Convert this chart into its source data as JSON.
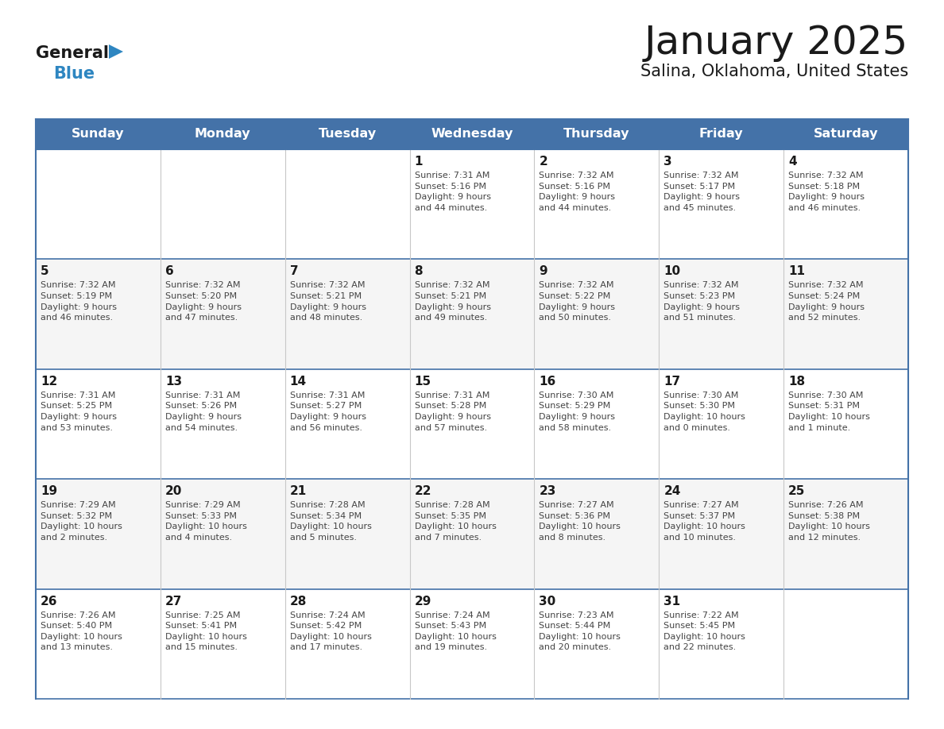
{
  "title": "January 2025",
  "subtitle": "Salina, Oklahoma, United States",
  "header_color": "#4472a8",
  "header_text_color": "#ffffff",
  "border_color": "#4472a8",
  "row_line_color": "#4472a8",
  "col_line_color": "#c8c8c8",
  "cell_bg_even": "#ffffff",
  "cell_bg_odd": "#f5f5f5",
  "title_color": "#1a1a1a",
  "subtitle_color": "#1a1a1a",
  "cell_text_color": "#444444",
  "day_num_color": "#1a1a1a",
  "logo_general_color": "#1a1a1a",
  "logo_blue_color": "#2e86c1",
  "logo_triangle_color": "#2e86c1",
  "day_names": [
    "Sunday",
    "Monday",
    "Tuesday",
    "Wednesday",
    "Thursday",
    "Friday",
    "Saturday"
  ],
  "calendar_data": [
    [
      {
        "day": null,
        "text": ""
      },
      {
        "day": null,
        "text": ""
      },
      {
        "day": null,
        "text": ""
      },
      {
        "day": 1,
        "text": "Sunrise: 7:31 AM\nSunset: 5:16 PM\nDaylight: 9 hours\nand 44 minutes."
      },
      {
        "day": 2,
        "text": "Sunrise: 7:32 AM\nSunset: 5:16 PM\nDaylight: 9 hours\nand 44 minutes."
      },
      {
        "day": 3,
        "text": "Sunrise: 7:32 AM\nSunset: 5:17 PM\nDaylight: 9 hours\nand 45 minutes."
      },
      {
        "day": 4,
        "text": "Sunrise: 7:32 AM\nSunset: 5:18 PM\nDaylight: 9 hours\nand 46 minutes."
      }
    ],
    [
      {
        "day": 5,
        "text": "Sunrise: 7:32 AM\nSunset: 5:19 PM\nDaylight: 9 hours\nand 46 minutes."
      },
      {
        "day": 6,
        "text": "Sunrise: 7:32 AM\nSunset: 5:20 PM\nDaylight: 9 hours\nand 47 minutes."
      },
      {
        "day": 7,
        "text": "Sunrise: 7:32 AM\nSunset: 5:21 PM\nDaylight: 9 hours\nand 48 minutes."
      },
      {
        "day": 8,
        "text": "Sunrise: 7:32 AM\nSunset: 5:21 PM\nDaylight: 9 hours\nand 49 minutes."
      },
      {
        "day": 9,
        "text": "Sunrise: 7:32 AM\nSunset: 5:22 PM\nDaylight: 9 hours\nand 50 minutes."
      },
      {
        "day": 10,
        "text": "Sunrise: 7:32 AM\nSunset: 5:23 PM\nDaylight: 9 hours\nand 51 minutes."
      },
      {
        "day": 11,
        "text": "Sunrise: 7:32 AM\nSunset: 5:24 PM\nDaylight: 9 hours\nand 52 minutes."
      }
    ],
    [
      {
        "day": 12,
        "text": "Sunrise: 7:31 AM\nSunset: 5:25 PM\nDaylight: 9 hours\nand 53 minutes."
      },
      {
        "day": 13,
        "text": "Sunrise: 7:31 AM\nSunset: 5:26 PM\nDaylight: 9 hours\nand 54 minutes."
      },
      {
        "day": 14,
        "text": "Sunrise: 7:31 AM\nSunset: 5:27 PM\nDaylight: 9 hours\nand 56 minutes."
      },
      {
        "day": 15,
        "text": "Sunrise: 7:31 AM\nSunset: 5:28 PM\nDaylight: 9 hours\nand 57 minutes."
      },
      {
        "day": 16,
        "text": "Sunrise: 7:30 AM\nSunset: 5:29 PM\nDaylight: 9 hours\nand 58 minutes."
      },
      {
        "day": 17,
        "text": "Sunrise: 7:30 AM\nSunset: 5:30 PM\nDaylight: 10 hours\nand 0 minutes."
      },
      {
        "day": 18,
        "text": "Sunrise: 7:30 AM\nSunset: 5:31 PM\nDaylight: 10 hours\nand 1 minute."
      }
    ],
    [
      {
        "day": 19,
        "text": "Sunrise: 7:29 AM\nSunset: 5:32 PM\nDaylight: 10 hours\nand 2 minutes."
      },
      {
        "day": 20,
        "text": "Sunrise: 7:29 AM\nSunset: 5:33 PM\nDaylight: 10 hours\nand 4 minutes."
      },
      {
        "day": 21,
        "text": "Sunrise: 7:28 AM\nSunset: 5:34 PM\nDaylight: 10 hours\nand 5 minutes."
      },
      {
        "day": 22,
        "text": "Sunrise: 7:28 AM\nSunset: 5:35 PM\nDaylight: 10 hours\nand 7 minutes."
      },
      {
        "day": 23,
        "text": "Sunrise: 7:27 AM\nSunset: 5:36 PM\nDaylight: 10 hours\nand 8 minutes."
      },
      {
        "day": 24,
        "text": "Sunrise: 7:27 AM\nSunset: 5:37 PM\nDaylight: 10 hours\nand 10 minutes."
      },
      {
        "day": 25,
        "text": "Sunrise: 7:26 AM\nSunset: 5:38 PM\nDaylight: 10 hours\nand 12 minutes."
      }
    ],
    [
      {
        "day": 26,
        "text": "Sunrise: 7:26 AM\nSunset: 5:40 PM\nDaylight: 10 hours\nand 13 minutes."
      },
      {
        "day": 27,
        "text": "Sunrise: 7:25 AM\nSunset: 5:41 PM\nDaylight: 10 hours\nand 15 minutes."
      },
      {
        "day": 28,
        "text": "Sunrise: 7:24 AM\nSunset: 5:42 PM\nDaylight: 10 hours\nand 17 minutes."
      },
      {
        "day": 29,
        "text": "Sunrise: 7:24 AM\nSunset: 5:43 PM\nDaylight: 10 hours\nand 19 minutes."
      },
      {
        "day": 30,
        "text": "Sunrise: 7:23 AM\nSunset: 5:44 PM\nDaylight: 10 hours\nand 20 minutes."
      },
      {
        "day": 31,
        "text": "Sunrise: 7:22 AM\nSunset: 5:45 PM\nDaylight: 10 hours\nand 22 minutes."
      },
      {
        "day": null,
        "text": ""
      }
    ]
  ]
}
